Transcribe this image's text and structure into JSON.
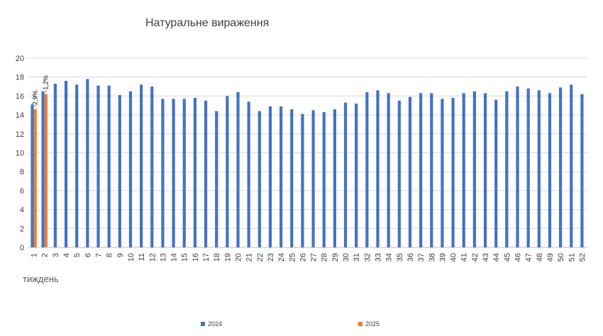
{
  "chart_data": {
    "type": "bar",
    "title": "Натуральне вираження",
    "xlabel": "тиждень",
    "ylabel": "",
    "ylim": [
      0,
      20
    ],
    "yticks": [
      0,
      2,
      4,
      6,
      8,
      10,
      12,
      14,
      16,
      18,
      20
    ],
    "grid": true,
    "legend_position": "bottom",
    "categories": [
      "1",
      "2",
      "3",
      "4",
      "5",
      "6",
      "7",
      "8",
      "9",
      "10",
      "11",
      "12",
      "13",
      "14",
      "15",
      "16",
      "17",
      "18",
      "19",
      "20",
      "21",
      "22",
      "23",
      "24",
      "25",
      "26",
      "27",
      "28",
      "29",
      "30",
      "31",
      "32",
      "33",
      "34",
      "35",
      "36",
      "37",
      "38",
      "39",
      "40",
      "41",
      "42",
      "43",
      "44",
      "45",
      "46",
      "47",
      "48",
      "49",
      "50",
      "51",
      "52"
    ],
    "series": [
      {
        "name": "2024",
        "color": "#4472C4",
        "values": [
          15.1,
          16.5,
          17.3,
          17.6,
          17.2,
          17.8,
          17.1,
          17.1,
          16.1,
          16.5,
          17.2,
          17.0,
          15.7,
          15.7,
          15.7,
          15.8,
          15.5,
          14.4,
          16.0,
          16.4,
          15.4,
          14.4,
          14.9,
          14.9,
          14.6,
          14.1,
          14.5,
          14.3,
          14.6,
          15.3,
          15.2,
          16.4,
          16.6,
          16.3,
          15.5,
          15.9,
          16.3,
          16.3,
          15.7,
          15.8,
          16.3,
          16.5,
          16.3,
          15.6,
          16.5,
          17.0,
          16.8,
          16.6,
          16.3,
          16.9,
          17.2,
          16.2
        ]
      },
      {
        "name": "2025",
        "color": "#ED7D31",
        "values": [
          14.6,
          16.2,
          null,
          null,
          null,
          null,
          null,
          null,
          null,
          null,
          null,
          null,
          null,
          null,
          null,
          null,
          null,
          null,
          null,
          null,
          null,
          null,
          null,
          null,
          null,
          null,
          null,
          null,
          null,
          null,
          null,
          null,
          null,
          null,
          null,
          null,
          null,
          null,
          null,
          null,
          null,
          null,
          null,
          null,
          null,
          null,
          null,
          null,
          null,
          null,
          null,
          null
        ]
      }
    ],
    "annotations": [
      {
        "category": "1",
        "text": "-2,9%"
      },
      {
        "category": "2",
        "text": "-1,2%"
      }
    ]
  }
}
